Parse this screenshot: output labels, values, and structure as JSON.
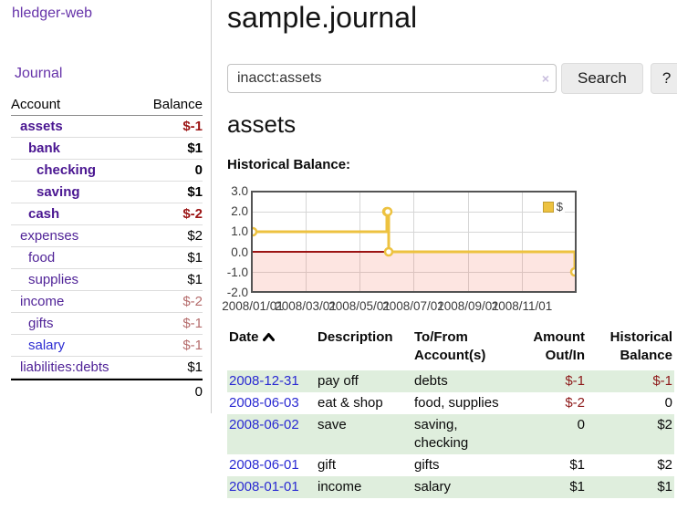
{
  "sidebar": {
    "app_title": "hledger-web",
    "nav": {
      "journal_label": "Journal"
    },
    "accounts": {
      "headers": {
        "account": "Account",
        "balance": "Balance"
      },
      "rows": [
        {
          "name": "assets",
          "balance": "$-1",
          "depth": 0,
          "bold": true,
          "balance_class": "bal-neg"
        },
        {
          "name": "bank",
          "balance": "$1",
          "depth": 1,
          "bold": true,
          "balance_class": ""
        },
        {
          "name": "checking",
          "balance": "0",
          "depth": 2,
          "bold": true,
          "balance_class": ""
        },
        {
          "name": "saving",
          "balance": "$1",
          "depth": 2,
          "bold": true,
          "balance_class": ""
        },
        {
          "name": "cash",
          "balance": "$-2",
          "depth": 1,
          "bold": true,
          "balance_class": "bal-neg"
        },
        {
          "name": "expenses",
          "balance": "$2",
          "depth": 0,
          "bold": false,
          "balance_class": ""
        },
        {
          "name": "food",
          "balance": "$1",
          "depth": 1,
          "bold": false,
          "balance_class": ""
        },
        {
          "name": "supplies",
          "balance": "$1",
          "depth": 1,
          "bold": false,
          "balance_class": ""
        },
        {
          "name": "income",
          "balance": "$-2",
          "depth": 0,
          "bold": false,
          "balance_class": "bal-soft"
        },
        {
          "name": "gifts",
          "balance": "$-1",
          "depth": 1,
          "bold": false,
          "balance_class": "bal-soft"
        },
        {
          "name": "salary",
          "balance": "$-1",
          "depth": 1,
          "bold": false,
          "balance_class": "bal-soft",
          "link": "blue"
        },
        {
          "name": "liabilities:debts",
          "balance": "$1",
          "depth": 0,
          "bold": false,
          "balance_class": ""
        }
      ],
      "total": "0"
    }
  },
  "header": {
    "title": "sample.journal"
  },
  "search": {
    "value": "inacct:assets",
    "clear_icon": "×",
    "search_button_label": "Search",
    "help_button_label": "?"
  },
  "account_page": {
    "heading": "assets",
    "chart_label": "Historical Balance:"
  },
  "chart_data": {
    "type": "line",
    "style": "step",
    "title": "Historical Balance",
    "series": [
      {
        "name": "$",
        "color": "#edc240",
        "points": [
          [
            "2008-01-01",
            1
          ],
          [
            "2008-06-01",
            2
          ],
          [
            "2008-06-02",
            2
          ],
          [
            "2008-06-03",
            0
          ],
          [
            "2008-12-31",
            -1
          ]
        ]
      }
    ],
    "ylim": [
      -2,
      3
    ],
    "yticks": [
      "3.0",
      "2.0",
      "1.0",
      "0.0",
      "-1.0",
      "-2.0"
    ],
    "ytick_values": [
      3,
      2,
      1,
      0,
      -1,
      -2
    ],
    "xticks": [
      "2008/01/01",
      "2008/03/01",
      "2008/05/01",
      "2008/07/01",
      "2008/09/01",
      "2008/11/01"
    ],
    "xrange": [
      "2008-01-01",
      "2008-12-31"
    ],
    "grid": true,
    "negative_region": true,
    "legend": {
      "label": "$",
      "position": "top-right"
    }
  },
  "register": {
    "headers": {
      "date": "Date",
      "description": "Description",
      "accounts": "To/From Account(s)",
      "amount": "Amount Out/In",
      "balance": "Historical Balance"
    },
    "sort": {
      "column": "date",
      "direction": "asc"
    },
    "rows": [
      {
        "date": "2008-12-31",
        "description": "pay off",
        "accounts": "debts",
        "amount": "$-1",
        "balance": "$-1"
      },
      {
        "date": "2008-06-03",
        "description": "eat & shop",
        "accounts": "food, supplies",
        "amount": "$-2",
        "balance": "0"
      },
      {
        "date": "2008-06-02",
        "description": "save",
        "accounts": "saving, checking",
        "amount": "0",
        "balance": "$2"
      },
      {
        "date": "2008-06-01",
        "description": "gift",
        "accounts": "gifts",
        "amount": "$1",
        "balance": "$2"
      },
      {
        "date": "2008-01-01",
        "description": "income",
        "accounts": "salary",
        "amount": "$1",
        "balance": "$1"
      }
    ]
  },
  "colors": {
    "link_purple": "#6633a9",
    "account_purple": "#512498",
    "link_blue": "#2a2ad2",
    "negative_strong": "#9b1414",
    "negative_soft": "#b56c6c",
    "table_negative": "#8e1a1a",
    "row_green": "#dfeedd",
    "chart_line_yellow": "#edc240",
    "chart_negative_pink": "#fbdcd8",
    "chart_zero_line_red": "#9c1313",
    "chart_border_gray": "#545454"
  }
}
